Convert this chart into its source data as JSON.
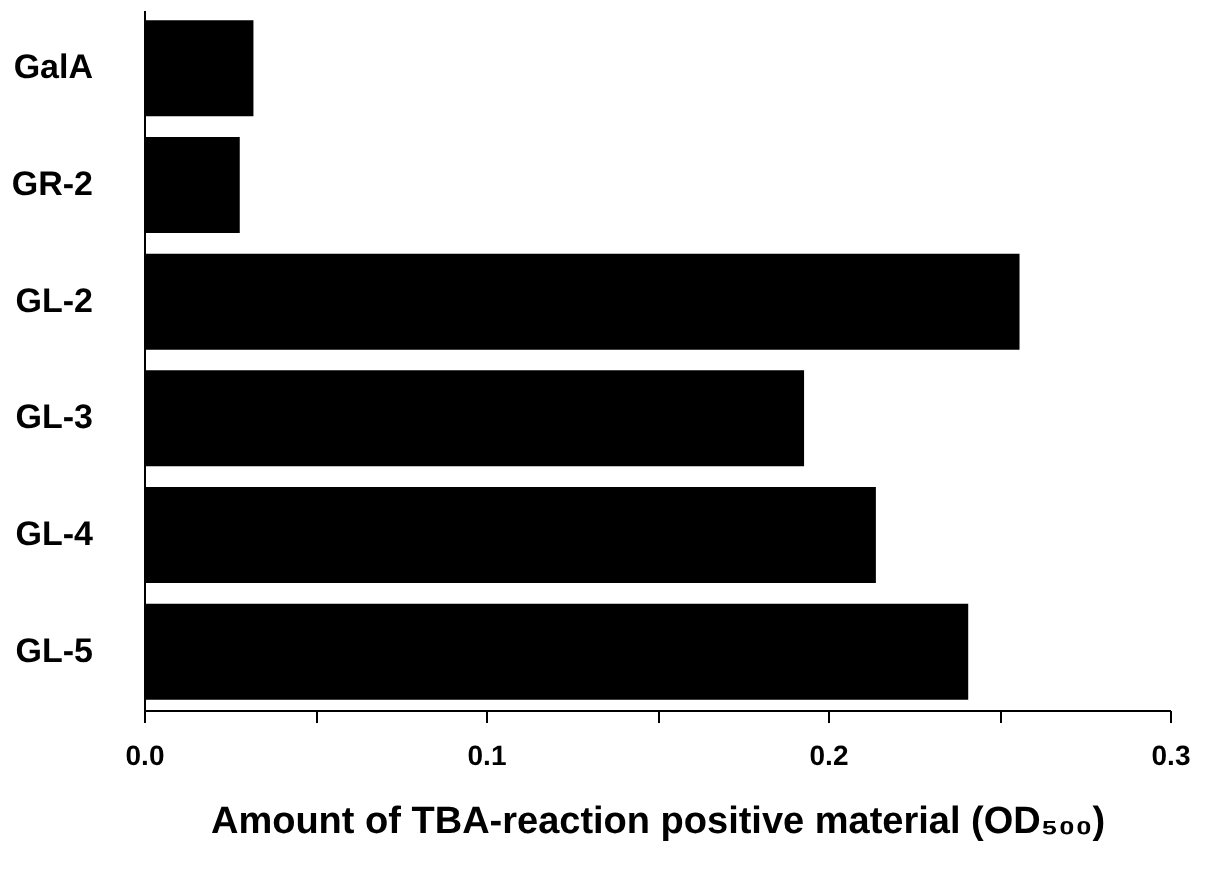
{
  "chart_data": {
    "type": "bar",
    "orientation": "horizontal",
    "categories": [
      "GalA",
      "GR-2",
      "GL-2",
      "GL-3",
      "GL-4",
      "GL-5"
    ],
    "values": [
      0.032,
      0.028,
      0.256,
      0.193,
      0.214,
      0.241
    ],
    "color": "#000000",
    "xlabel": "Amount of TBA-reaction positive material (OD₅₀₀)",
    "xlim": [
      0,
      0.3
    ],
    "xticks": [
      {
        "value": 0,
        "label": "0.0"
      },
      {
        "value": 0.05,
        "label": null
      },
      0.1,
      {
        "value": 0.15,
        "label": null
      },
      0.2,
      {
        "value": 0.25,
        "label": null
      },
      0.3
    ],
    "grid": false
  }
}
